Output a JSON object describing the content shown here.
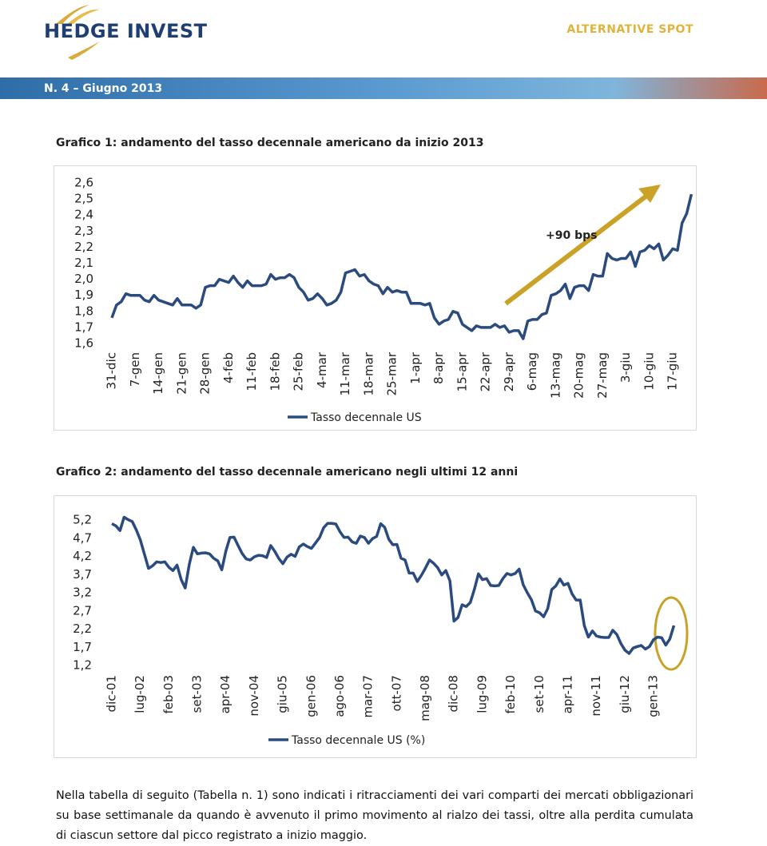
{
  "header": {
    "logo": "HEDGE INVEST",
    "section": "ALTERNATIVE SPOT",
    "issue": "N. 4 – Giugno 2013"
  },
  "chart_data": [
    {
      "type": "line",
      "title": "Grafico 1: andamento del tasso decennale americano da inizio 2013",
      "annotation": "+90 bps",
      "categories": [
        "31-dic",
        null,
        null,
        null,
        null,
        "7-gen",
        null,
        null,
        null,
        null,
        "14-gen",
        null,
        null,
        null,
        null,
        "21-gen",
        null,
        null,
        null,
        null,
        "28-gen",
        null,
        null,
        null,
        null,
        "4-feb",
        null,
        null,
        null,
        null,
        "11-feb",
        null,
        null,
        null,
        null,
        "18-feb",
        null,
        null,
        null,
        null,
        "25-feb",
        null,
        null,
        null,
        null,
        "4-mar",
        null,
        null,
        null,
        null,
        "11-mar",
        null,
        null,
        null,
        null,
        "18-mar",
        null,
        null,
        null,
        null,
        "25-mar",
        null,
        null,
        null,
        null,
        "1-apr",
        null,
        null,
        null,
        null,
        "8-apr",
        null,
        null,
        null,
        null,
        "15-apr",
        null,
        null,
        null,
        null,
        "22-apr",
        null,
        null,
        null,
        null,
        "29-apr",
        null,
        null,
        null,
        null,
        "6-mag",
        null,
        null,
        null,
        null,
        "13-mag",
        null,
        null,
        null,
        null,
        "20-mag",
        null,
        null,
        null,
        null,
        "27-mag",
        null,
        null,
        null,
        null,
        "3-giu",
        null,
        null,
        null,
        null,
        "10-giu",
        null,
        null,
        null,
        null,
        "17-giu",
        null,
        null,
        null,
        null
      ],
      "series": [
        {
          "name": "Tasso decennale US",
          "color": "#2b4a7e",
          "values": [
            1.76,
            1.84,
            1.86,
            1.91,
            1.9,
            1.9,
            1.9,
            1.87,
            1.86,
            1.9,
            1.87,
            1.86,
            1.85,
            1.84,
            1.88,
            1.84,
            1.84,
            1.84,
            1.82,
            1.84,
            1.95,
            1.96,
            1.96,
            2.0,
            1.99,
            1.98,
            2.02,
            1.98,
            1.95,
            1.99,
            1.96,
            1.96,
            1.96,
            1.97,
            2.03,
            2.0,
            2.01,
            2.01,
            2.03,
            2.01,
            1.95,
            1.92,
            1.87,
            1.88,
            1.91,
            1.88,
            1.84,
            1.85,
            1.87,
            1.92,
            2.04,
            2.05,
            2.06,
            2.02,
            2.03,
            1.99,
            1.97,
            1.96,
            1.91,
            1.95,
            1.92,
            1.93,
            1.92,
            1.92,
            1.85,
            1.85,
            1.85,
            1.84,
            1.85,
            1.76,
            1.72,
            1.74,
            1.75,
            1.8,
            1.79,
            1.72,
            1.7,
            1.68,
            1.71,
            1.7,
            1.7,
            1.7,
            1.72,
            1.7,
            1.71,
            1.67,
            1.68,
            1.68,
            1.63,
            1.74,
            1.75,
            1.75,
            1.78,
            1.79,
            1.9,
            1.91,
            1.93,
            1.97,
            1.88,
            1.95,
            1.96,
            1.96,
            1.93,
            2.03,
            2.02,
            2.02,
            2.16,
            2.13,
            2.12,
            2.13,
            2.13,
            2.17,
            2.08,
            2.17,
            2.18,
            2.21,
            2.19,
            2.22,
            2.12,
            2.15,
            2.19,
            2.18,
            2.35,
            2.41,
            2.53
          ]
        }
      ],
      "ylim": [
        1.6,
        2.6
      ],
      "yticks": [
        {
          "value": 2.6,
          "label": "2,6"
        },
        {
          "value": 2.5,
          "label": "2,5"
        },
        {
          "value": 2.4,
          "label": "2,4"
        },
        {
          "value": 2.3,
          "label": "2,3"
        },
        {
          "value": 2.2,
          "label": "2,2"
        },
        {
          "value": 2.1,
          "label": "2,1"
        },
        {
          "value": 2.0,
          "label": "2,0"
        },
        {
          "value": 1.9,
          "label": "1,9"
        },
        {
          "value": 1.8,
          "label": "1,8"
        },
        {
          "value": 1.7,
          "label": "1,7"
        },
        {
          "value": 1.6,
          "label": "1,6"
        }
      ],
      "legend": "bottom"
    },
    {
      "type": "line",
      "title": "Grafico 2: andamento del tasso decennale americano negli ultimi 12 anni",
      "categories": [
        "dic-01",
        null,
        null,
        null,
        null,
        null,
        null,
        "lug-02",
        null,
        null,
        null,
        null,
        null,
        null,
        "feb-03",
        null,
        null,
        null,
        null,
        null,
        null,
        "set-03",
        null,
        null,
        null,
        null,
        null,
        null,
        "apr-04",
        null,
        null,
        null,
        null,
        null,
        null,
        "nov-04",
        null,
        null,
        null,
        null,
        null,
        null,
        "giu-05",
        null,
        null,
        null,
        null,
        null,
        null,
        "gen-06",
        null,
        null,
        null,
        null,
        null,
        null,
        "ago-06",
        null,
        null,
        null,
        null,
        null,
        null,
        "mar-07",
        null,
        null,
        null,
        null,
        null,
        null,
        "ott-07",
        null,
        null,
        null,
        null,
        null,
        null,
        "mag-08",
        null,
        null,
        null,
        null,
        null,
        null,
        "dic-08",
        null,
        null,
        null,
        null,
        null,
        null,
        "lug-09",
        null,
        null,
        null,
        null,
        null,
        null,
        "feb-10",
        null,
        null,
        null,
        null,
        null,
        null,
        "set-10",
        null,
        null,
        null,
        null,
        null,
        null,
        "apr-11",
        null,
        null,
        null,
        null,
        null,
        null,
        "nov-11",
        null,
        null,
        null,
        null,
        null,
        null,
        "giu-12",
        null,
        null,
        null,
        null,
        null,
        null,
        "gen-13",
        null,
        null,
        null,
        null,
        null
      ],
      "series": [
        {
          "name": "Tasso decennale US (%)",
          "color": "#2b4a7e",
          "values": [
            5.1,
            5.04,
            4.91,
            5.28,
            5.21,
            5.16,
            4.93,
            4.65,
            4.26,
            3.87,
            3.94,
            4.05,
            4.03,
            4.05,
            3.9,
            3.81,
            3.96,
            3.57,
            3.33,
            3.98,
            4.45,
            4.27,
            4.29,
            4.3,
            4.27,
            4.15,
            4.08,
            3.83,
            4.35,
            4.72,
            4.73,
            4.5,
            4.28,
            4.13,
            4.1,
            4.19,
            4.23,
            4.22,
            4.17,
            4.5,
            4.34,
            4.14,
            4.0,
            4.18,
            4.26,
            4.2,
            4.46,
            4.54,
            4.47,
            4.42,
            4.57,
            4.72,
            4.99,
            5.11,
            5.11,
            5.09,
            4.88,
            4.72,
            4.73,
            4.6,
            4.56,
            4.76,
            4.72,
            4.56,
            4.69,
            4.75,
            5.1,
            5.0,
            4.67,
            4.52,
            4.53,
            4.15,
            4.1,
            3.74,
            3.74,
            3.51,
            3.68,
            3.88,
            4.1,
            4.01,
            3.89,
            3.69,
            3.81,
            3.53,
            2.42,
            2.52,
            2.87,
            2.82,
            2.93,
            3.29,
            3.72,
            3.56,
            3.59,
            3.4,
            3.39,
            3.4,
            3.59,
            3.73,
            3.69,
            3.73,
            3.85,
            3.42,
            3.2,
            3.01,
            2.7,
            2.65,
            2.54,
            2.76,
            3.29,
            3.39,
            3.58,
            3.41,
            3.46,
            3.17,
            3.0,
            3.0,
            2.3,
            1.98,
            2.15,
            2.01,
            1.98,
            1.97,
            1.97,
            2.17,
            2.05,
            1.8,
            1.62,
            1.53,
            1.68,
            1.72,
            1.75,
            1.65,
            1.72,
            1.91,
            1.98,
            1.96,
            1.76,
            1.93,
            2.3
          ]
        }
      ],
      "ylim": [
        1.2,
        5.45
      ],
      "yticks": [
        {
          "value": 5.2,
          "label": "5,2"
        },
        {
          "value": 4.7,
          "label": "4,7"
        },
        {
          "value": 4.2,
          "label": "4,2"
        },
        {
          "value": 3.7,
          "label": "3,7"
        },
        {
          "value": 3.2,
          "label": "3,2"
        },
        {
          "value": 2.7,
          "label": "2,7"
        },
        {
          "value": 2.2,
          "label": "2,2"
        },
        {
          "value": 1.7,
          "label": "1,7"
        },
        {
          "value": 1.2,
          "label": "1,2"
        }
      ],
      "legend": "bottom"
    }
  ],
  "paragraph": "Nella tabella di seguito (Tabella n. 1) sono indicati i ritracciamenti dei vari comparti dei mercati obbligazionari su base settimanale da quando è avvenuto il primo movimento al rialzo dei tassi, oltre alla perdita cumulata di ciascun settore dal picco registrato a inizio maggio."
}
